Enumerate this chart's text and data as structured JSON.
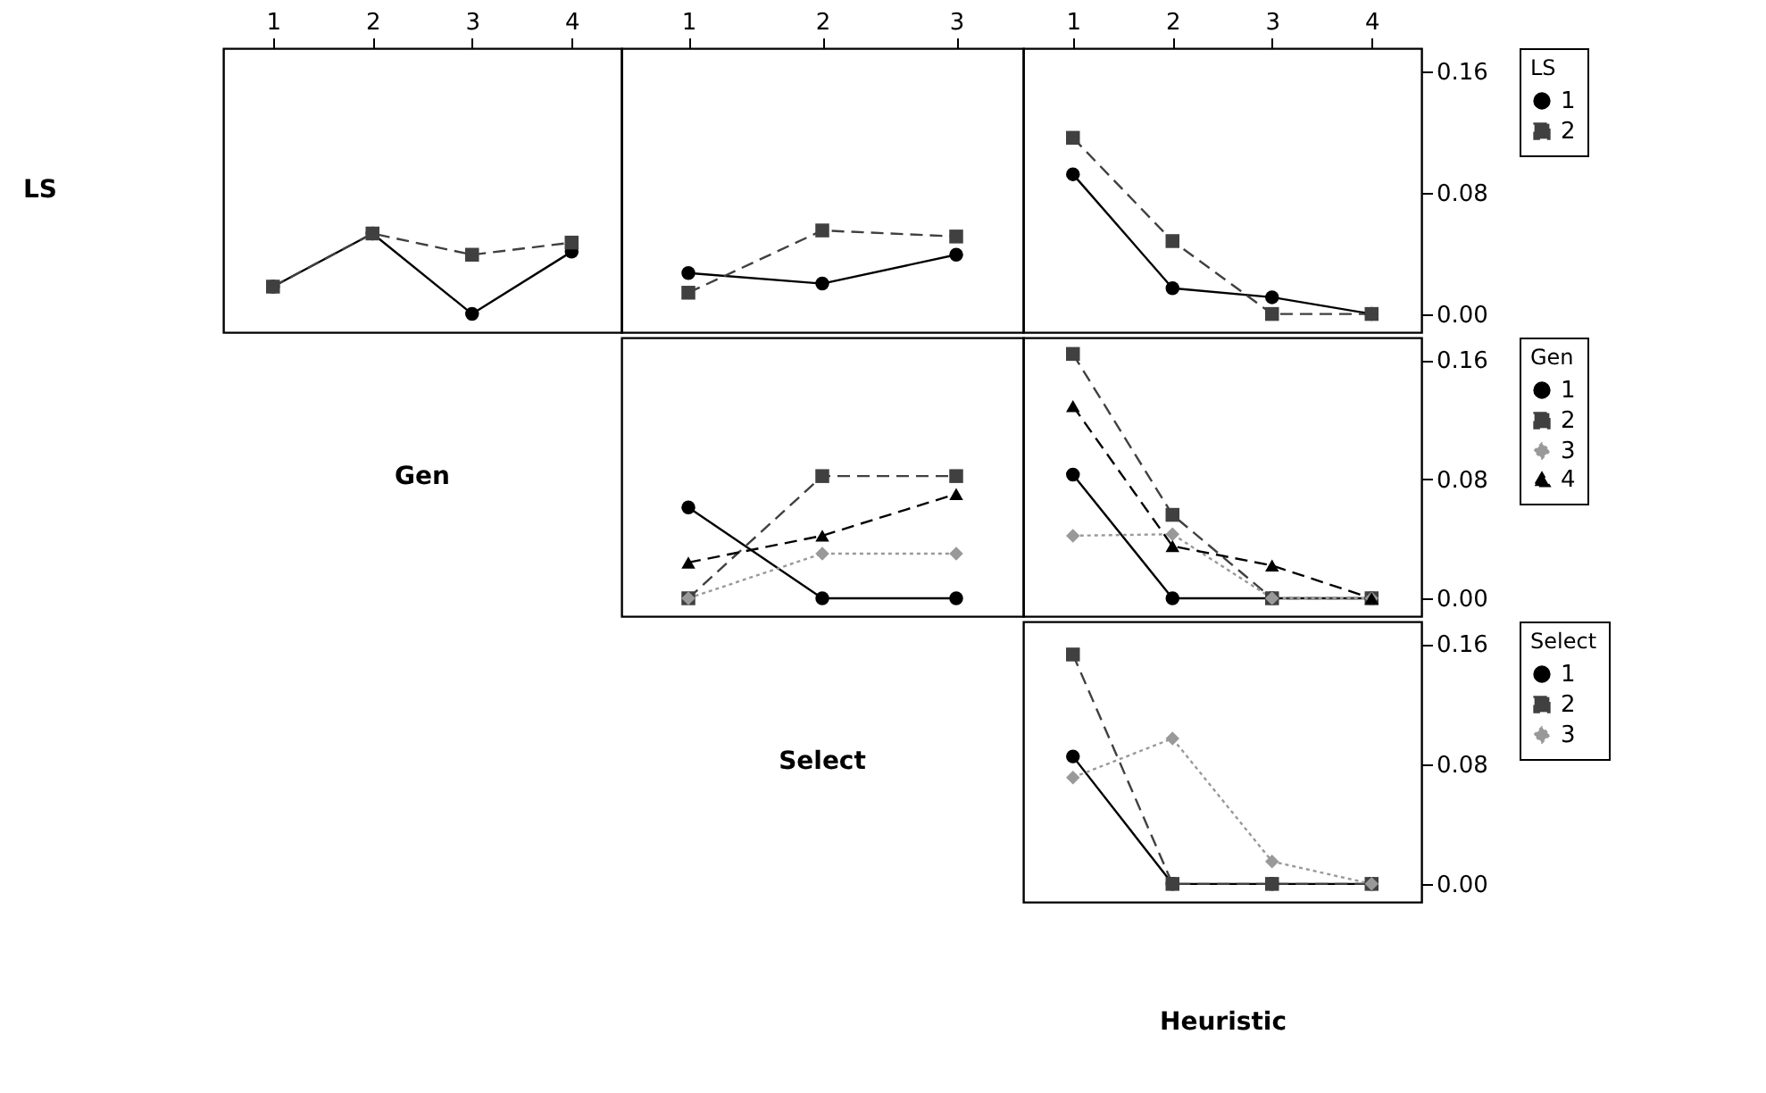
{
  "chart_data": [
    {
      "type": "line",
      "ylabel": "LS",
      "xlim": [
        0.5,
        4.5
      ],
      "xticks": [
        1,
        2,
        3,
        4
      ],
      "ylim": [
        -0.012,
        0.175
      ],
      "tick_labels": "x",
      "legend": false,
      "x": [
        1,
        2,
        3,
        4
      ],
      "series": [
        {
          "name": "1",
          "color": "#000000",
          "marker": "circle",
          "line_style": "solid",
          "values": [
            0.018,
            0.053,
            0.0,
            0.041
          ]
        },
        {
          "name": "2",
          "color": "#404040",
          "marker": "square",
          "line_style": "dashed",
          "values": [
            0.018,
            0.053,
            0.039,
            0.047
          ]
        }
      ]
    },
    {
      "type": "line",
      "xlim": [
        0.5,
        3.5
      ],
      "xticks": [
        1,
        2,
        3
      ],
      "ylim": [
        -0.012,
        0.175
      ],
      "tick_labels": "x",
      "legend": false,
      "x": [
        1,
        2,
        3
      ],
      "series": [
        {
          "name": "1",
          "color": "#000000",
          "marker": "circle",
          "line_style": "solid",
          "values": [
            0.027,
            0.02,
            0.039
          ]
        },
        {
          "name": "2",
          "color": "#404040",
          "marker": "square",
          "line_style": "dashed",
          "values": [
            0.014,
            0.055,
            0.051
          ]
        }
      ]
    },
    {
      "type": "line",
      "xlim": [
        0.5,
        4.5
      ],
      "xticks": [
        1,
        2,
        3,
        4
      ],
      "ylim": [
        -0.012,
        0.175
      ],
      "yticks": [
        {
          "value": 0,
          "label": "0.00"
        },
        {
          "value": 0.08,
          "label": "0.08"
        },
        {
          "value": 0.16,
          "label": "0.16"
        }
      ],
      "legend": "right",
      "legend_title": "LS",
      "x": [
        1,
        2,
        3,
        4
      ],
      "series": [
        {
          "name": "1",
          "color": "#000000",
          "marker": "circle",
          "line_style": "solid",
          "values": [
            0.092,
            0.017,
            0.011,
            0.0
          ]
        },
        {
          "name": "2",
          "color": "#404040",
          "marker": "square",
          "line_style": "dashed",
          "values": [
            0.116,
            0.048,
            0.0,
            0.0
          ]
        }
      ]
    },
    {
      "type": "line",
      "ylabel": "Gen",
      "xlim": [
        0.5,
        3.5
      ],
      "xticks": [
        1,
        2,
        3
      ],
      "ylim": [
        -0.012,
        0.175
      ],
      "tick_labels": false,
      "legend": false,
      "x": [
        1,
        2,
        3
      ],
      "series": [
        {
          "name": "1",
          "color": "#000000",
          "marker": "circle",
          "line_style": "solid",
          "values": [
            0.061,
            0.0,
            0.0
          ]
        },
        {
          "name": "2",
          "color": "#404040",
          "marker": "square",
          "line_style": "dashed",
          "values": [
            0.0,
            0.082,
            0.082
          ]
        },
        {
          "name": "3",
          "color": "#999999",
          "marker": "diamond",
          "line_style": "dotted",
          "values": [
            0.0,
            0.03,
            0.03
          ]
        },
        {
          "name": "4",
          "color": "#000000",
          "marker": "triangle",
          "line_style": "dashed",
          "values": [
            0.024,
            0.042,
            0.07
          ]
        }
      ]
    },
    {
      "type": "line",
      "xlim": [
        0.5,
        4.5
      ],
      "xticks": [
        1,
        2,
        3,
        4
      ],
      "ylim": [
        -0.012,
        0.175
      ],
      "yticks": [
        {
          "value": 0,
          "label": "0.00"
        },
        {
          "value": 0.08,
          "label": "0.08"
        },
        {
          "value": 0.16,
          "label": "0.16"
        }
      ],
      "tick_labels": "y",
      "legend": "right",
      "legend_title": "Gen",
      "x": [
        1,
        2,
        3,
        4
      ],
      "series": [
        {
          "name": "1",
          "color": "#000000",
          "marker": "circle",
          "line_style": "solid",
          "values": [
            0.083,
            0.0,
            0.0,
            0.0
          ]
        },
        {
          "name": "2",
          "color": "#404040",
          "marker": "square",
          "line_style": "dashed",
          "values": [
            0.164,
            0.056,
            0.0,
            0.0
          ]
        },
        {
          "name": "3",
          "color": "#999999",
          "marker": "diamond",
          "line_style": "dotted",
          "values": [
            0.042,
            0.043,
            0.0,
            0.0
          ]
        },
        {
          "name": "4",
          "color": "#000000",
          "marker": "triangle",
          "line_style": "dashed",
          "values": [
            0.129,
            0.035,
            0.022,
            0.0
          ]
        }
      ]
    },
    {
      "type": "line",
      "ylabel": "Select",
      "xlabel": "Heuristic",
      "xlim": [
        0.5,
        4.5
      ],
      "xticks": [
        1,
        2,
        3,
        4
      ],
      "ylim": [
        -0.012,
        0.175
      ],
      "yticks": [
        {
          "value": 0,
          "label": "0.00"
        },
        {
          "value": 0.08,
          "label": "0.08"
        },
        {
          "value": 0.16,
          "label": "0.16"
        }
      ],
      "tick_labels": "y",
      "legend": "right",
      "legend_title": "Select",
      "x": [
        1,
        2,
        3,
        4
      ],
      "series": [
        {
          "name": "1",
          "color": "#000000",
          "marker": "circle",
          "line_style": "solid",
          "values": [
            0.085,
            0.0,
            0.0,
            0.0
          ]
        },
        {
          "name": "2",
          "color": "#404040",
          "marker": "square",
          "line_style": "dashed",
          "values": [
            0.153,
            0.0,
            0.0,
            0.0
          ]
        },
        {
          "name": "3",
          "color": "#999999",
          "marker": "diamond",
          "line_style": "dotted",
          "values": [
            0.071,
            0.097,
            0.015,
            0.0
          ]
        }
      ]
    }
  ]
}
